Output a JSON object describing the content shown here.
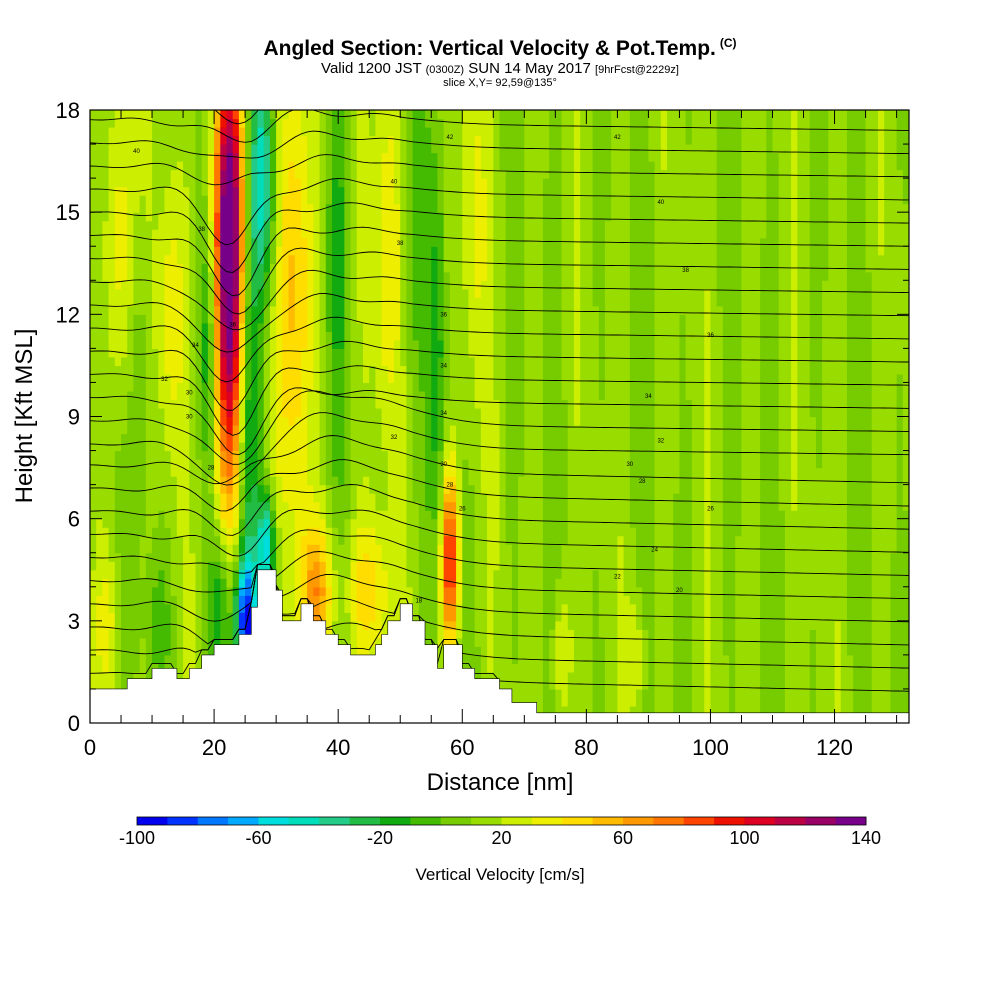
{
  "title": {
    "main": "Angled Section: Vertical Velocity & Pot.Temp.",
    "main_suffix": "(C)",
    "valid_a": "Valid 1200 JST",
    "valid_b": "(0300Z)",
    "valid_c": "SUN 14 May 2017",
    "valid_d": "[9hrFcst@2229z]",
    "slice": "slice X,Y= 92,59@135°"
  },
  "chart_data": {
    "type": "heatmap",
    "xlabel": "Distance [nm]",
    "ylabel": "Height [Kft MSL]",
    "xlim": [
      0,
      132
    ],
    "ylim": [
      0,
      18
    ],
    "x_ticks": [
      0,
      20,
      40,
      60,
      80,
      100,
      120
    ],
    "y_ticks": [
      0,
      3,
      6,
      9,
      12,
      15,
      18
    ],
    "colorbar": {
      "label": "Vertical Velocity [cm/s]",
      "ticks": [
        -100,
        -60,
        -20,
        20,
        60,
        100,
        140
      ],
      "min": -100,
      "max": 140,
      "colors": [
        "#0000ee",
        "#0033ff",
        "#0077ff",
        "#00aaff",
        "#00dddd",
        "#00ddbb",
        "#22cc88",
        "#22bb44",
        "#11aa11",
        "#44bb00",
        "#77cc00",
        "#99dd00",
        "#ccee00",
        "#eeee00",
        "#ffdd00",
        "#ffbb00",
        "#ff9900",
        "#ff7700",
        "#ff4400",
        "#ee1100",
        "#dd0022",
        "#bb0044",
        "#990066",
        "#770088"
      ]
    },
    "terrain_profile": [
      [
        0,
        1.0
      ],
      [
        6,
        1.0
      ],
      [
        6,
        1.3
      ],
      [
        10,
        1.3
      ],
      [
        10,
        1.6
      ],
      [
        14,
        1.6
      ],
      [
        14,
        1.3
      ],
      [
        16,
        1.3
      ],
      [
        16,
        1.6
      ],
      [
        18,
        1.6
      ],
      [
        18,
        2.0
      ],
      [
        20,
        2.0
      ],
      [
        20,
        2.3
      ],
      [
        24,
        2.3
      ],
      [
        24,
        2.6
      ],
      [
        26,
        2.6
      ],
      [
        26,
        3.4
      ],
      [
        27,
        3.4
      ],
      [
        27,
        4.5
      ],
      [
        30,
        4.5
      ],
      [
        30,
        3.9
      ],
      [
        31,
        3.9
      ],
      [
        31,
        3.0
      ],
      [
        34,
        3.0
      ],
      [
        34,
        3.5
      ],
      [
        36,
        3.5
      ],
      [
        36,
        3.0
      ],
      [
        38,
        3.0
      ],
      [
        38,
        2.6
      ],
      [
        40,
        2.6
      ],
      [
        40,
        2.3
      ],
      [
        42,
        2.3
      ],
      [
        42,
        2.0
      ],
      [
        46,
        2.0
      ],
      [
        46,
        2.3
      ],
      [
        47,
        2.3
      ],
      [
        47,
        2.6
      ],
      [
        48,
        2.6
      ],
      [
        48,
        3.0
      ],
      [
        50,
        3.0
      ],
      [
        50,
        3.5
      ],
      [
        52,
        3.5
      ],
      [
        52,
        3.0
      ],
      [
        54,
        3.0
      ],
      [
        54,
        2.3
      ],
      [
        56,
        2.3
      ],
      [
        56,
        1.6
      ],
      [
        57,
        1.6
      ],
      [
        57,
        2.3
      ],
      [
        60,
        2.3
      ],
      [
        60,
        1.6
      ],
      [
        62,
        1.6
      ],
      [
        62,
        1.3
      ],
      [
        66,
        1.3
      ],
      [
        66,
        1.0
      ],
      [
        68,
        1.0
      ],
      [
        68,
        0.6
      ],
      [
        72,
        0.6
      ],
      [
        72,
        0.3
      ],
      [
        132,
        0.3
      ]
    ],
    "velocity_features": [
      {
        "x": 22.5,
        "y": 15.0,
        "sx": 1.8,
        "sy": 3.5,
        "value": 125
      },
      {
        "x": 22.5,
        "y": 9.5,
        "sx": 1.8,
        "sy": 3.5,
        "value": 60
      },
      {
        "x": 19.0,
        "y": 11.0,
        "sx": 1.0,
        "sy": 2.5,
        "value": -30
      },
      {
        "x": 25.5,
        "y": 10.0,
        "sx": 1.4,
        "sy": 7.0,
        "value": -40
      },
      {
        "x": 28.0,
        "y": 16.0,
        "sx": 1.4,
        "sy": 2.5,
        "value": -60
      },
      {
        "x": 28.5,
        "y": 5.2,
        "sx": 1.0,
        "sy": 1.0,
        "value": -70
      },
      {
        "x": 25.0,
        "y": 3.0,
        "sx": 1.2,
        "sy": 1.2,
        "value": -85
      },
      {
        "x": 21.0,
        "y": 3.5,
        "sx": 1.2,
        "sy": 1.5,
        "value": -35
      },
      {
        "x": 33.0,
        "y": 13.0,
        "sx": 2.0,
        "sy": 5.0,
        "value": 45
      },
      {
        "x": 36.5,
        "y": 3.8,
        "sx": 2.0,
        "sy": 1.5,
        "value": 50
      },
      {
        "x": 45.0,
        "y": 3.8,
        "sx": 2.5,
        "sy": 1.5,
        "value": 35
      },
      {
        "x": 40.0,
        "y": 14.0,
        "sx": 1.3,
        "sy": 4.0,
        "value": -20
      },
      {
        "x": 48.0,
        "y": 14.0,
        "sx": 1.5,
        "sy": 4.0,
        "value": 30
      },
      {
        "x": 52.0,
        "y": 15.0,
        "sx": 1.2,
        "sy": 4.0,
        "value": -15
      },
      {
        "x": 56.0,
        "y": 11.0,
        "sx": 1.0,
        "sy": 4.0,
        "value": -25
      },
      {
        "x": 58.0,
        "y": 4.8,
        "sx": 1.0,
        "sy": 1.8,
        "value": 85
      },
      {
        "x": 62.0,
        "y": 15.0,
        "sx": 1.5,
        "sy": 4.0,
        "value": 20
      },
      {
        "x": 5.0,
        "y": 14.0,
        "sx": 1.5,
        "sy": 3.5,
        "value": 30
      },
      {
        "x": 13.0,
        "y": 12.0,
        "sx": 1.5,
        "sy": 3.0,
        "value": 25
      },
      {
        "x": 8.0,
        "y": 10.0,
        "sx": 1.0,
        "sy": 3.0,
        "value": -15
      },
      {
        "x": 3.0,
        "y": 3.0,
        "sx": 1.5,
        "sy": 1.5,
        "value": 20
      },
      {
        "x": 11.0,
        "y": 3.0,
        "sx": 1.5,
        "sy": 1.5,
        "value": -15
      },
      {
        "x": 76.0,
        "y": 2.0,
        "sx": 1.0,
        "sy": 1.5,
        "value": 25
      },
      {
        "x": 88.0,
        "y": 2.0,
        "sx": 1.0,
        "sy": 1.2,
        "value": 20
      }
    ],
    "isentrope_labels": [
      {
        "x": 7.5,
        "y": 16.8,
        "text": "40"
      },
      {
        "x": 18,
        "y": 14.5,
        "text": "38"
      },
      {
        "x": 23,
        "y": 11.7,
        "text": "36"
      },
      {
        "x": 17,
        "y": 11.1,
        "text": "34"
      },
      {
        "x": 12,
        "y": 10.1,
        "text": "32"
      },
      {
        "x": 16,
        "y": 9.0,
        "text": "30"
      },
      {
        "x": 19.5,
        "y": 7.5,
        "text": "28"
      },
      {
        "x": 16,
        "y": 9.7,
        "text": "30"
      },
      {
        "x": 58,
        "y": 17.2,
        "text": "42"
      },
      {
        "x": 85,
        "y": 17.2,
        "text": "42"
      },
      {
        "x": 49,
        "y": 15.9,
        "text": "40"
      },
      {
        "x": 92,
        "y": 15.3,
        "text": "40"
      },
      {
        "x": 50,
        "y": 14.1,
        "text": "38"
      },
      {
        "x": 96,
        "y": 13.3,
        "text": "38"
      },
      {
        "x": 57,
        "y": 12.0,
        "text": "36"
      },
      {
        "x": 100,
        "y": 11.4,
        "text": "36"
      },
      {
        "x": 57,
        "y": 10.5,
        "text": "34"
      },
      {
        "x": 90,
        "y": 9.6,
        "text": "34"
      },
      {
        "x": 57,
        "y": 9.1,
        "text": "34"
      },
      {
        "x": 49,
        "y": 8.4,
        "text": "32"
      },
      {
        "x": 92,
        "y": 8.3,
        "text": "32"
      },
      {
        "x": 57,
        "y": 7.6,
        "text": "30"
      },
      {
        "x": 87,
        "y": 7.6,
        "text": "30"
      },
      {
        "x": 58,
        "y": 7.0,
        "text": "28"
      },
      {
        "x": 89,
        "y": 7.1,
        "text": "28"
      },
      {
        "x": 60,
        "y": 6.3,
        "text": "26"
      },
      {
        "x": 100,
        "y": 6.3,
        "text": "26"
      },
      {
        "x": 91,
        "y": 5.1,
        "text": "24"
      },
      {
        "x": 85,
        "y": 4.3,
        "text": "22"
      },
      {
        "x": 95,
        "y": 3.9,
        "text": "20"
      },
      {
        "x": 53,
        "y": 3.6,
        "text": "18"
      }
    ]
  }
}
